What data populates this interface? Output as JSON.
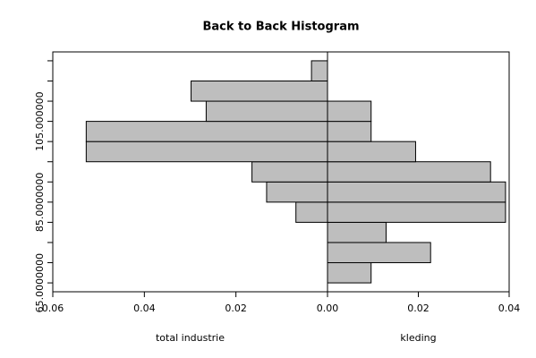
{
  "chart_data": {
    "type": "back_to_back_histogram",
    "title": "Back to Back Histogram",
    "bins": [
      65,
      70,
      75,
      80,
      85,
      90,
      95,
      100,
      105,
      110,
      115,
      120
    ],
    "series": [
      {
        "name": "total industrie",
        "side": "left",
        "color": "#bebebe",
        "values": [
          0,
          0,
          0,
          0.0069,
          0.0133,
          0.0165,
          0.0527,
          0.0527,
          0.0265,
          0.0298,
          0.0035
        ]
      },
      {
        "name": "kleding",
        "side": "right",
        "color": "#bebebe",
        "values": [
          0.0096,
          0.0227,
          0.0129,
          0.0392,
          0.0392,
          0.0359,
          0.0194,
          0.0096,
          0.0096,
          0,
          0
        ]
      }
    ],
    "left_xlim": [
      0.06,
      0
    ],
    "left_xticks": [
      0.06,
      0.04,
      0.02
    ],
    "right_xlim": [
      0,
      0.04
    ],
    "right_xticks": [
      {
        "value": 0,
        "label": "0.00"
      },
      0.02,
      0.04
    ],
    "ylim": [
      62.8,
      122.2
    ],
    "yticks": [
      {
        "value": 65,
        "label": "65.0000000"
      },
      {
        "value": 85,
        "label": "85.0000000"
      },
      {
        "value": 105,
        "label": "105.000000"
      }
    ],
    "yminorticks": [
      70,
      75,
      80,
      90,
      95,
      100,
      110,
      115,
      120
    ]
  }
}
